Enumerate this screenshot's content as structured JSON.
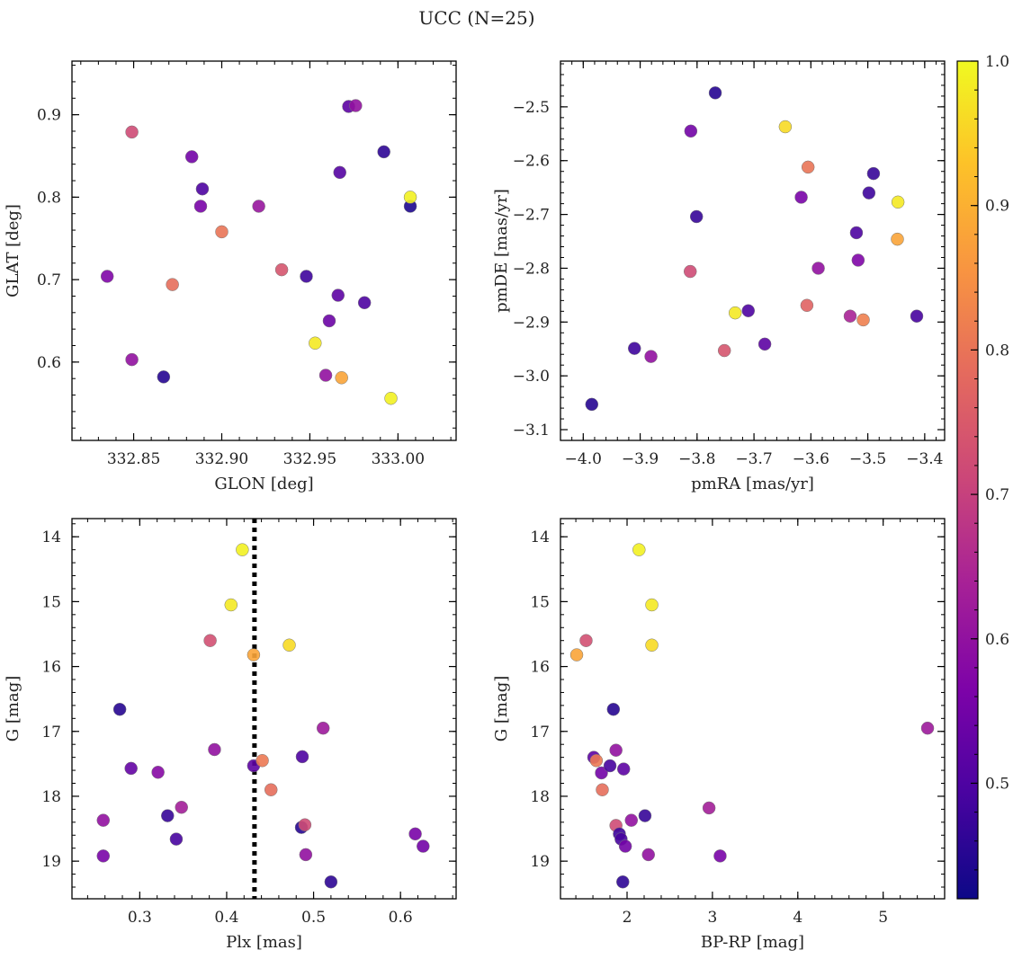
{
  "figure": {
    "title": "UCC (N=25)"
  },
  "colorbar": {
    "min": 0.42,
    "max": 1.0,
    "ticks": [
      "0.5",
      "0.6",
      "0.7",
      "0.8",
      "0.9",
      "1.0"
    ],
    "tick_values": [
      0.5,
      0.6,
      0.7,
      0.8,
      0.9,
      1.0
    ]
  },
  "chart_data": [
    {
      "type": "scatter",
      "xlabel": "GLON [deg]",
      "ylabel": "GLAT [deg]",
      "xlim": [
        332.815,
        333.033
      ],
      "ylim": [
        0.505,
        0.965
      ],
      "y_inverted": false,
      "xticks": [
        332.85,
        332.9,
        332.95,
        333.0
      ],
      "xtick_labels": [
        "332.85",
        "332.90",
        "332.95",
        "333.00"
      ],
      "yticks": [
        0.6,
        0.7,
        0.8,
        0.9
      ],
      "ytick_labels": [
        "0.6",
        "0.7",
        "0.8",
        "0.9"
      ],
      "vline": null,
      "points": [
        {
          "x": 332.835,
          "y": 0.704,
          "c": 0.57
        },
        {
          "x": 332.849,
          "y": 0.879,
          "c": 0.72
        },
        {
          "x": 332.849,
          "y": 0.603,
          "c": 0.6
        },
        {
          "x": 332.867,
          "y": 0.582,
          "c": 0.45
        },
        {
          "x": 332.872,
          "y": 0.694,
          "c": 0.79
        },
        {
          "x": 332.883,
          "y": 0.849,
          "c": 0.55
        },
        {
          "x": 332.888,
          "y": 0.789,
          "c": 0.56
        },
        {
          "x": 332.889,
          "y": 0.81,
          "c": 0.5
        },
        {
          "x": 332.9,
          "y": 0.758,
          "c": 0.8
        },
        {
          "x": 332.921,
          "y": 0.789,
          "c": 0.61
        },
        {
          "x": 332.934,
          "y": 0.712,
          "c": 0.74
        },
        {
          "x": 332.948,
          "y": 0.704,
          "c": 0.48
        },
        {
          "x": 332.953,
          "y": 0.623,
          "c": 0.98
        },
        {
          "x": 332.959,
          "y": 0.584,
          "c": 0.6
        },
        {
          "x": 332.961,
          "y": 0.65,
          "c": 0.54
        },
        {
          "x": 332.966,
          "y": 0.681,
          "c": 0.52
        },
        {
          "x": 332.967,
          "y": 0.83,
          "c": 0.51
        },
        {
          "x": 332.968,
          "y": 0.581,
          "c": 0.88
        },
        {
          "x": 332.972,
          "y": 0.91,
          "c": 0.52
        },
        {
          "x": 332.976,
          "y": 0.911,
          "c": 0.6
        },
        {
          "x": 332.981,
          "y": 0.672,
          "c": 0.5
        },
        {
          "x": 332.992,
          "y": 0.855,
          "c": 0.46
        },
        {
          "x": 332.996,
          "y": 0.556,
          "c": 0.99
        },
        {
          "x": 333.007,
          "y": 0.789,
          "c": 0.44
        },
        {
          "x": 333.007,
          "y": 0.8,
          "c": 0.99
        }
      ]
    },
    {
      "type": "scatter",
      "xlabel": "pmRA [mas/yr]",
      "ylabel": "pmDE [mas/yr]",
      "xlim": [
        -4.04,
        -3.365
      ],
      "ylim": [
        -3.12,
        -2.415
      ],
      "y_inverted": false,
      "xticks": [
        -4.0,
        -3.9,
        -3.8,
        -3.7,
        -3.6,
        -3.5,
        -3.4
      ],
      "xtick_labels": [
        "−4.0",
        "−3.9",
        "−3.8",
        "−3.7",
        "−3.6",
        "−3.5",
        "−3.4"
      ],
      "yticks": [
        -3.1,
        -3.0,
        -2.9,
        -2.8,
        -2.7,
        -2.6,
        -2.5
      ],
      "ytick_labels": [
        "−3.1",
        "−3.0",
        "−2.9",
        "−2.8",
        "−2.7",
        "−2.6",
        "−2.5"
      ],
      "vline": null,
      "points": [
        {
          "x": -3.985,
          "y": -3.053,
          "c": 0.45
        },
        {
          "x": -3.91,
          "y": -2.949,
          "c": 0.48
        },
        {
          "x": -3.881,
          "y": -2.964,
          "c": 0.6
        },
        {
          "x": -3.812,
          "y": -2.806,
          "c": 0.72
        },
        {
          "x": -3.811,
          "y": -2.545,
          "c": 0.55
        },
        {
          "x": -3.801,
          "y": -2.704,
          "c": 0.47
        },
        {
          "x": -3.768,
          "y": -2.474,
          "c": 0.45
        },
        {
          "x": -3.752,
          "y": -2.953,
          "c": 0.74
        },
        {
          "x": -3.733,
          "y": -2.883,
          "c": 0.98
        },
        {
          "x": -3.71,
          "y": -2.879,
          "c": 0.5
        },
        {
          "x": -3.681,
          "y": -2.941,
          "c": 0.52
        },
        {
          "x": -3.645,
          "y": -2.537,
          "c": 0.96
        },
        {
          "x": -3.617,
          "y": -2.668,
          "c": 0.56
        },
        {
          "x": -3.607,
          "y": -2.869,
          "c": 0.77
        },
        {
          "x": -3.605,
          "y": -2.612,
          "c": 0.8
        },
        {
          "x": -3.587,
          "y": -2.8,
          "c": 0.6
        },
        {
          "x": -3.531,
          "y": -2.889,
          "c": 0.64
        },
        {
          "x": -3.52,
          "y": -2.734,
          "c": 0.5
        },
        {
          "x": -3.517,
          "y": -2.785,
          "c": 0.57
        },
        {
          "x": -3.508,
          "y": -2.896,
          "c": 0.82
        },
        {
          "x": -3.498,
          "y": -2.66,
          "c": 0.48
        },
        {
          "x": -3.49,
          "y": -2.624,
          "c": 0.47
        },
        {
          "x": -3.447,
          "y": -2.677,
          "c": 0.98
        },
        {
          "x": -3.448,
          "y": -2.746,
          "c": 0.88
        },
        {
          "x": -3.414,
          "y": -2.889,
          "c": 0.49
        }
      ]
    },
    {
      "type": "scatter",
      "xlabel": "Plx [mas]",
      "ylabel": "G [mag]",
      "xlim": [
        0.222,
        0.664
      ],
      "ylim": [
        13.72,
        19.58
      ],
      "y_inverted": true,
      "xticks": [
        0.3,
        0.4,
        0.5,
        0.6
      ],
      "xtick_labels": [
        "0.3",
        "0.4",
        "0.5",
        "0.6"
      ],
      "yticks": [
        14,
        15,
        16,
        17,
        18,
        19
      ],
      "ytick_labels": [
        "14",
        "15",
        "16",
        "17",
        "18",
        "19"
      ],
      "vline": 0.432,
      "points": [
        {
          "x": 0.258,
          "y": 18.37,
          "c": 0.6
        },
        {
          "x": 0.258,
          "y": 18.92,
          "c": 0.56
        },
        {
          "x": 0.277,
          "y": 16.66,
          "c": 0.45
        },
        {
          "x": 0.29,
          "y": 17.57,
          "c": 0.53
        },
        {
          "x": 0.321,
          "y": 17.63,
          "c": 0.58
        },
        {
          "x": 0.332,
          "y": 18.3,
          "c": 0.47
        },
        {
          "x": 0.342,
          "y": 18.66,
          "c": 0.49
        },
        {
          "x": 0.348,
          "y": 18.17,
          "c": 0.63
        },
        {
          "x": 0.381,
          "y": 15.6,
          "c": 0.73
        },
        {
          "x": 0.386,
          "y": 17.28,
          "c": 0.6
        },
        {
          "x": 0.405,
          "y": 15.05,
          "c": 0.98
        },
        {
          "x": 0.418,
          "y": 14.2,
          "c": 0.99
        },
        {
          "x": 0.431,
          "y": 15.82,
          "c": 0.88
        },
        {
          "x": 0.431,
          "y": 17.53,
          "c": 0.52
        },
        {
          "x": 0.441,
          "y": 17.45,
          "c": 0.81
        },
        {
          "x": 0.451,
          "y": 17.9,
          "c": 0.79
        },
        {
          "x": 0.472,
          "y": 15.67,
          "c": 0.96
        },
        {
          "x": 0.486,
          "y": 18.48,
          "c": 0.45
        },
        {
          "x": 0.487,
          "y": 17.39,
          "c": 0.5
        },
        {
          "x": 0.49,
          "y": 18.44,
          "c": 0.72
        },
        {
          "x": 0.491,
          "y": 18.9,
          "c": 0.6
        },
        {
          "x": 0.511,
          "y": 16.95,
          "c": 0.62
        },
        {
          "x": 0.52,
          "y": 19.32,
          "c": 0.46
        },
        {
          "x": 0.617,
          "y": 18.58,
          "c": 0.56
        },
        {
          "x": 0.626,
          "y": 18.77,
          "c": 0.55
        }
      ]
    },
    {
      "type": "scatter",
      "xlabel": "BP-RP [mag]",
      "ylabel": "G [mag]",
      "xlim": [
        1.22,
        5.72
      ],
      "ylim": [
        13.72,
        19.58
      ],
      "y_inverted": true,
      "xticks": [
        2,
        3,
        4,
        5
      ],
      "xtick_labels": [
        "2",
        "3",
        "4",
        "5"
      ],
      "yticks": [
        14,
        15,
        16,
        17,
        18,
        19
      ],
      "ytick_labels": [
        "14",
        "15",
        "16",
        "17",
        "18",
        "19"
      ],
      "vline": null,
      "points": [
        {
          "x": 1.41,
          "y": 15.82,
          "c": 0.88
        },
        {
          "x": 1.52,
          "y": 15.6,
          "c": 0.73
        },
        {
          "x": 1.61,
          "y": 17.4,
          "c": 0.52
        },
        {
          "x": 1.64,
          "y": 17.45,
          "c": 0.81
        },
        {
          "x": 1.7,
          "y": 17.64,
          "c": 0.55
        },
        {
          "x": 1.71,
          "y": 17.9,
          "c": 0.79
        },
        {
          "x": 1.8,
          "y": 17.53,
          "c": 0.49
        },
        {
          "x": 1.84,
          "y": 16.66,
          "c": 0.45
        },
        {
          "x": 1.87,
          "y": 17.29,
          "c": 0.6
        },
        {
          "x": 1.87,
          "y": 18.45,
          "c": 0.72
        },
        {
          "x": 1.91,
          "y": 18.58,
          "c": 0.48
        },
        {
          "x": 1.93,
          "y": 18.66,
          "c": 0.49
        },
        {
          "x": 1.95,
          "y": 19.32,
          "c": 0.46
        },
        {
          "x": 1.96,
          "y": 17.58,
          "c": 0.52
        },
        {
          "x": 1.98,
          "y": 18.77,
          "c": 0.55
        },
        {
          "x": 2.05,
          "y": 18.37,
          "c": 0.6
        },
        {
          "x": 2.14,
          "y": 14.2,
          "c": 0.99
        },
        {
          "x": 2.21,
          "y": 18.3,
          "c": 0.47
        },
        {
          "x": 2.25,
          "y": 18.9,
          "c": 0.6
        },
        {
          "x": 2.29,
          "y": 15.05,
          "c": 0.98
        },
        {
          "x": 2.29,
          "y": 15.67,
          "c": 0.96
        },
        {
          "x": 2.96,
          "y": 18.18,
          "c": 0.63
        },
        {
          "x": 3.09,
          "y": 18.92,
          "c": 0.56
        },
        {
          "x": 5.52,
          "y": 16.95,
          "c": 0.62
        }
      ]
    }
  ]
}
